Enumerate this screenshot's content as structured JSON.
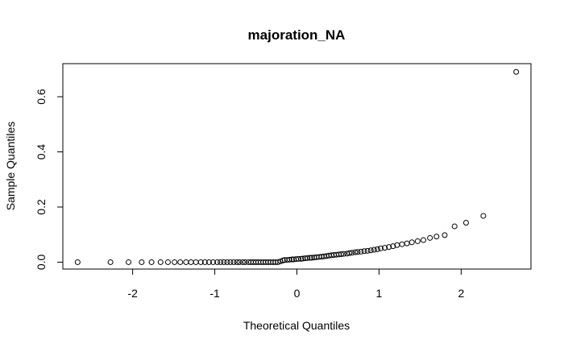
{
  "chart_data": {
    "type": "scatter",
    "title": "majoration_NA",
    "xlabel": "Theoretical Quantiles",
    "ylabel": "Sample Quantiles",
    "xlim": [
      -2.85,
      2.85
    ],
    "ylim": [
      -0.025,
      0.72
    ],
    "xticks": [
      -2,
      -1,
      0,
      1,
      2
    ],
    "xtick_labels": [
      "-2",
      "-1",
      "0",
      "1",
      "2"
    ],
    "yticks": [
      0.0,
      0.2,
      0.4,
      0.6
    ],
    "ytick_labels": [
      "0.0",
      "0.2",
      "0.4",
      "0.6"
    ],
    "grid": false,
    "marker": "open-circle",
    "points": [
      [
        -2.67,
        0.0
      ],
      [
        -2.27,
        0.0
      ],
      [
        -2.05,
        0.0
      ],
      [
        -1.89,
        0.0
      ],
      [
        -1.77,
        0.0
      ],
      [
        -1.66,
        0.0
      ],
      [
        -1.57,
        0.0
      ],
      [
        -1.49,
        0.0
      ],
      [
        -1.42,
        0.0
      ],
      [
        -1.35,
        0.0
      ],
      [
        -1.29,
        0.0
      ],
      [
        -1.23,
        0.0
      ],
      [
        -1.17,
        0.0
      ],
      [
        -1.12,
        0.0
      ],
      [
        -1.07,
        0.0
      ],
      [
        -1.02,
        0.0
      ],
      [
        -0.97,
        0.0
      ],
      [
        -0.93,
        0.0
      ],
      [
        -0.89,
        0.0
      ],
      [
        -0.85,
        0.0
      ],
      [
        -0.81,
        0.0
      ],
      [
        -0.77,
        0.0
      ],
      [
        -0.73,
        0.0
      ],
      [
        -0.7,
        0.0
      ],
      [
        -0.66,
        0.0
      ],
      [
        -0.63,
        0.0
      ],
      [
        -0.59,
        0.0
      ],
      [
        -0.56,
        0.0
      ],
      [
        -0.53,
        0.0
      ],
      [
        -0.5,
        0.0
      ],
      [
        -0.47,
        0.0
      ],
      [
        -0.44,
        0.0
      ],
      [
        -0.41,
        0.0
      ],
      [
        -0.38,
        0.0
      ],
      [
        -0.35,
        0.0
      ],
      [
        -0.32,
        0.0
      ],
      [
        -0.29,
        0.0
      ],
      [
        -0.26,
        0.0
      ],
      [
        -0.23,
        0.0
      ],
      [
        -0.2,
        0.003
      ],
      [
        -0.17,
        0.006
      ],
      [
        -0.15,
        0.008
      ],
      [
        -0.12,
        0.008
      ],
      [
        -0.09,
        0.009
      ],
      [
        -0.06,
        0.01
      ],
      [
        -0.04,
        0.01
      ],
      [
        -0.01,
        0.011
      ],
      [
        0.02,
        0.012
      ],
      [
        0.05,
        0.012
      ],
      [
        0.07,
        0.013
      ],
      [
        0.1,
        0.014
      ],
      [
        0.13,
        0.015
      ],
      [
        0.16,
        0.016
      ],
      [
        0.18,
        0.016
      ],
      [
        0.21,
        0.017
      ],
      [
        0.24,
        0.018
      ],
      [
        0.27,
        0.019
      ],
      [
        0.3,
        0.02
      ],
      [
        0.33,
        0.021
      ],
      [
        0.36,
        0.022
      ],
      [
        0.39,
        0.024
      ],
      [
        0.42,
        0.025
      ],
      [
        0.45,
        0.026
      ],
      [
        0.48,
        0.027
      ],
      [
        0.51,
        0.028
      ],
      [
        0.54,
        0.029
      ],
      [
        0.57,
        0.03
      ],
      [
        0.61,
        0.031
      ],
      [
        0.64,
        0.033
      ],
      [
        0.67,
        0.034
      ],
      [
        0.71,
        0.036
      ],
      [
        0.74,
        0.037
      ],
      [
        0.78,
        0.038
      ],
      [
        0.82,
        0.04
      ],
      [
        0.86,
        0.041
      ],
      [
        0.9,
        0.043
      ],
      [
        0.94,
        0.045
      ],
      [
        0.98,
        0.047
      ],
      [
        1.02,
        0.05
      ],
      [
        1.07,
        0.052
      ],
      [
        1.12,
        0.055
      ],
      [
        1.17,
        0.058
      ],
      [
        1.22,
        0.062
      ],
      [
        1.28,
        0.065
      ],
      [
        1.34,
        0.068
      ],
      [
        1.4,
        0.072
      ],
      [
        1.47,
        0.076
      ],
      [
        1.54,
        0.08
      ],
      [
        1.62,
        0.088
      ],
      [
        1.7,
        0.093
      ],
      [
        1.8,
        0.098
      ],
      [
        1.92,
        0.13
      ],
      [
        2.06,
        0.143
      ],
      [
        2.27,
        0.168
      ],
      [
        2.67,
        0.69
      ]
    ]
  }
}
